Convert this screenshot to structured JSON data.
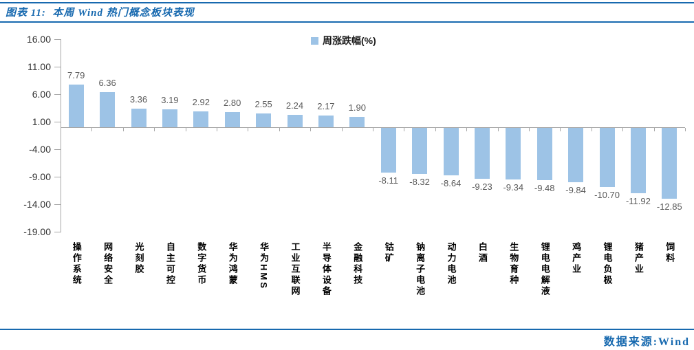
{
  "header": {
    "title": "图表 11:  本周 Wind 热门概念板块表现"
  },
  "legend": {
    "label": "周涨跌幅(%)"
  },
  "footer": {
    "source": "数据来源:Wind"
  },
  "colors": {
    "accent_blue": "#1769AF",
    "bar_fill": "#9DC3E6",
    "axis_gray": "#A6A6A6",
    "value_label_gray": "#595959"
  },
  "chart_data": {
    "type": "bar",
    "title": "本周 Wind 热门概念板块表现",
    "legend": [
      "周涨跌幅(%)"
    ],
    "legend_position": "top-center",
    "categories": [
      "操作系统",
      "网络安全",
      "光刻胶",
      "自主可控",
      "数字货币",
      "华为鸿蒙",
      "华为HMS",
      "工业互联网",
      "半导体设备",
      "金融科技",
      "钴矿",
      "钠离子电池",
      "动力电池",
      "白酒",
      "生物育种",
      "锂电电解液",
      "鸡产业",
      "锂电负极",
      "猪产业",
      "饲料"
    ],
    "values": [
      7.79,
      6.36,
      3.36,
      3.19,
      2.92,
      2.8,
      2.55,
      2.24,
      2.17,
      1.9,
      -8.11,
      -8.32,
      -8.64,
      -9.23,
      -9.34,
      -9.48,
      -9.84,
      -10.7,
      -11.92,
      -12.85
    ],
    "xlabel": "",
    "ylabel": "",
    "ylim": [
      -19,
      16
    ],
    "yticks": [
      16,
      11,
      6,
      1,
      -4,
      -9,
      -14,
      -19
    ],
    "ytick_decimals": 2,
    "grid": false,
    "data_labels": "outside-end",
    "bar_color": "#9DC3E6"
  }
}
